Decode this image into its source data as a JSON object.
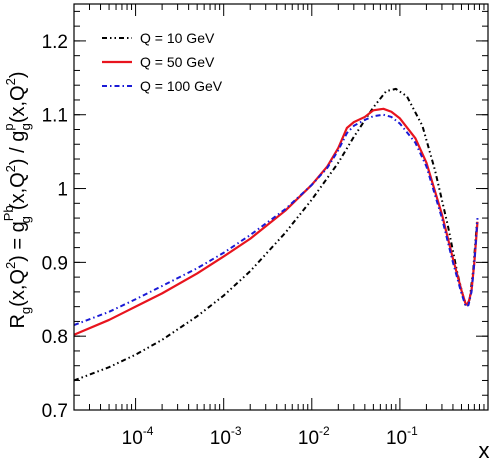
{
  "chart_data": {
    "type": "line",
    "x_scale": "log",
    "xlim": [
      2e-05,
      1.0
    ],
    "ylim": [
      0.7,
      1.25
    ],
    "xlabel": "x",
    "ylabel_parts": {
      "r": "R",
      "r_sub": "g",
      "arg1": "(x,Q",
      "sq1": "2",
      "mid": ") = g",
      "g_sup1": "Pb",
      "g_sub1": "g",
      "arg2": "(x,Q",
      "sq2": "2",
      "sep": ") / g",
      "g_sup2": "p",
      "g_sub2": "g",
      "arg3": "(x,Q",
      "sq3": "2",
      "end": ")"
    },
    "x_ticks": [
      {
        "value": 0.0001,
        "base": "10",
        "exp": "-4"
      },
      {
        "value": 0.001,
        "base": "10",
        "exp": "-3"
      },
      {
        "value": 0.01,
        "base": "10",
        "exp": "-2"
      },
      {
        "value": 0.1,
        "base": "10",
        "exp": "-1"
      }
    ],
    "y_ticks": [
      {
        "value": 0.7,
        "label": "0.7"
      },
      {
        "value": 0.8,
        "label": "0.8"
      },
      {
        "value": 0.9,
        "label": "0.9"
      },
      {
        "value": 1.0,
        "label": "1"
      },
      {
        "value": 1.1,
        "label": "1.1"
      },
      {
        "value": 1.2,
        "label": "1.2"
      }
    ],
    "legend_position": "top-left",
    "series": [
      {
        "name": "Q = 10 GeV",
        "color": "#000000",
        "dash": "dash-dot-dot",
        "points": [
          [
            2e-05,
            0.74
          ],
          [
            5e-05,
            0.758
          ],
          [
            0.0001,
            0.775
          ],
          [
            0.0002,
            0.795
          ],
          [
            0.0005,
            0.827
          ],
          [
            0.001,
            0.855
          ],
          [
            0.002,
            0.888
          ],
          [
            0.005,
            0.94
          ],
          [
            0.01,
            0.985
          ],
          [
            0.02,
            1.035
          ],
          [
            0.03,
            1.07
          ],
          [
            0.05,
            1.11
          ],
          [
            0.07,
            1.132
          ],
          [
            0.09,
            1.135
          ],
          [
            0.12,
            1.125
          ],
          [
            0.18,
            1.085
          ],
          [
            0.25,
            1.025
          ],
          [
            0.35,
            0.95
          ],
          [
            0.45,
            0.885
          ],
          [
            0.52,
            0.855
          ],
          [
            0.57,
            0.841
          ],
          [
            0.62,
            0.85
          ],
          [
            0.68,
            0.89
          ],
          [
            0.75,
            0.955
          ]
        ]
      },
      {
        "name": "Q = 50 GeV",
        "color": "#e8141e",
        "dash": "solid",
        "points": [
          [
            2e-05,
            0.802
          ],
          [
            5e-05,
            0.822
          ],
          [
            0.0001,
            0.84
          ],
          [
            0.0002,
            0.858
          ],
          [
            0.0005,
            0.885
          ],
          [
            0.001,
            0.908
          ],
          [
            0.002,
            0.932
          ],
          [
            0.005,
            0.97
          ],
          [
            0.01,
            1.005
          ],
          [
            0.015,
            1.03
          ],
          [
            0.02,
            1.055
          ],
          [
            0.025,
            1.082
          ],
          [
            0.03,
            1.09
          ],
          [
            0.04,
            1.097
          ],
          [
            0.05,
            1.106
          ],
          [
            0.065,
            1.108
          ],
          [
            0.08,
            1.104
          ],
          [
            0.1,
            1.095
          ],
          [
            0.15,
            1.068
          ],
          [
            0.2,
            1.035
          ],
          [
            0.3,
            0.965
          ],
          [
            0.4,
            0.905
          ],
          [
            0.5,
            0.862
          ],
          [
            0.56,
            0.843
          ],
          [
            0.6,
            0.845
          ],
          [
            0.65,
            0.862
          ],
          [
            0.7,
            0.9
          ],
          [
            0.76,
            0.955
          ]
        ]
      },
      {
        "name": "Q = 100 GeV",
        "color": "#1a1ad6",
        "dash": "dash-dot",
        "points": [
          [
            2e-05,
            0.815
          ],
          [
            5e-05,
            0.833
          ],
          [
            0.0001,
            0.85
          ],
          [
            0.0002,
            0.868
          ],
          [
            0.0005,
            0.892
          ],
          [
            0.001,
            0.913
          ],
          [
            0.002,
            0.937
          ],
          [
            0.005,
            0.972
          ],
          [
            0.01,
            1.005
          ],
          [
            0.015,
            1.028
          ],
          [
            0.02,
            1.052
          ],
          [
            0.025,
            1.075
          ],
          [
            0.03,
            1.085
          ],
          [
            0.04,
            1.093
          ],
          [
            0.05,
            1.098
          ],
          [
            0.065,
            1.1
          ],
          [
            0.08,
            1.097
          ],
          [
            0.1,
            1.088
          ],
          [
            0.15,
            1.062
          ],
          [
            0.2,
            1.03
          ],
          [
            0.3,
            0.96
          ],
          [
            0.4,
            0.9
          ],
          [
            0.5,
            0.858
          ],
          [
            0.56,
            0.84
          ],
          [
            0.6,
            0.842
          ],
          [
            0.65,
            0.86
          ],
          [
            0.7,
            0.9
          ],
          [
            0.76,
            0.96
          ]
        ]
      }
    ]
  }
}
